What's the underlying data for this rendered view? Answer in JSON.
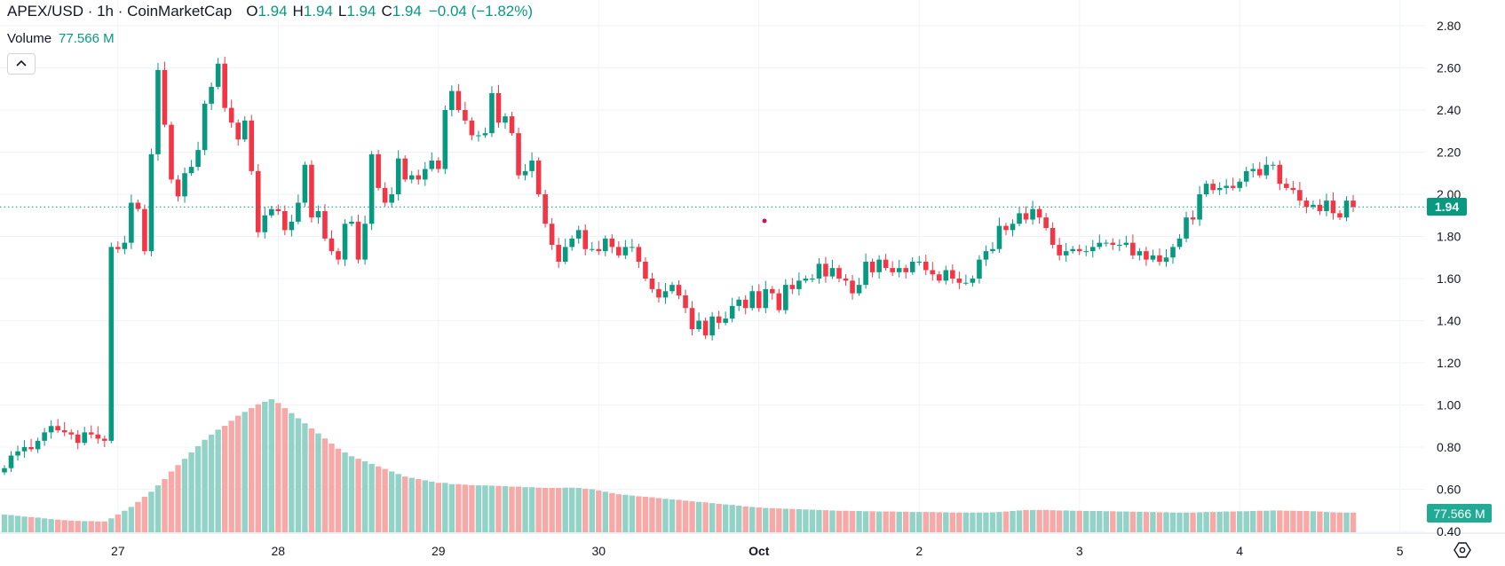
{
  "header": {
    "title": "APEX/USD · 1h · CoinMarketCap",
    "o_label": "O",
    "o_value": "1.94",
    "h_label": "H",
    "h_value": "1.94",
    "l_label": "L",
    "l_value": "1.94",
    "c_label": "C",
    "c_value": "1.94",
    "change": "−0.04 (−1.82%)"
  },
  "volume_legend": {
    "label": "Volume",
    "value": "77.566 M"
  },
  "collapse_icon": "chevron-up-icon",
  "settings_icon": "gear-icon",
  "current_price_badge": "1.94",
  "current_volume_badge": "77.566 M",
  "colors": {
    "up": "#089981",
    "down": "#f23645",
    "up_volume": "#92d2c7",
    "down_volume": "#f7a9a7",
    "grid": "#f0f3fa"
  },
  "chart_data": {
    "type": "candlestick",
    "symbol": "APEX/USD",
    "interval": "1h",
    "first_open": 0.68,
    "closes": [
      0.7,
      0.76,
      0.78,
      0.8,
      0.79,
      0.83,
      0.87,
      0.9,
      0.88,
      0.87,
      0.86,
      0.82,
      0.87,
      0.86,
      0.84,
      0.83,
      1.75,
      1.74,
      1.77,
      1.96,
      1.93,
      1.73,
      2.19,
      2.59,
      2.33,
      2.07,
      1.99,
      2.1,
      2.13,
      2.21,
      2.43,
      2.51,
      2.62,
      2.41,
      2.34,
      2.26,
      2.35,
      2.11,
      1.82,
      1.9,
      1.93,
      1.92,
      1.83,
      1.87,
      1.96,
      2.14,
      1.89,
      1.92,
      1.79,
      1.73,
      1.69,
      1.86,
      1.87,
      1.69,
      1.86,
      2.19,
      2.03,
      1.96,
      2.0,
      2.17,
      2.07,
      2.09,
      2.07,
      2.12,
      2.16,
      2.12,
      2.4,
      2.49,
      2.4,
      2.35,
      2.28,
      2.28,
      2.29,
      2.48,
      2.34,
      2.37,
      2.29,
      2.09,
      2.11,
      2.16,
      2.0,
      1.86,
      1.76,
      1.68,
      1.75,
      1.79,
      1.83,
      1.74,
      1.74,
      1.73,
      1.79,
      1.75,
      1.71,
      1.75,
      1.75,
      1.68,
      1.6,
      1.55,
      1.51,
      1.54,
      1.57,
      1.52,
      1.46,
      1.36,
      1.4,
      1.33,
      1.42,
      1.39,
      1.41,
      1.47,
      1.5,
      1.46,
      1.54,
      1.46,
      1.55,
      1.53,
      1.45,
      1.57,
      1.55,
      1.59,
      1.6,
      1.6,
      1.67,
      1.61,
      1.65,
      1.6,
      1.59,
      1.53,
      1.57,
      1.68,
      1.63,
      1.69,
      1.65,
      1.63,
      1.65,
      1.63,
      1.68,
      1.68,
      1.64,
      1.62,
      1.59,
      1.64,
      1.6,
      1.58,
      1.58,
      1.6,
      1.69,
      1.73,
      1.74,
      1.85,
      1.83,
      1.86,
      1.91,
      1.88,
      1.93,
      1.89,
      1.84,
      1.76,
      1.71,
      1.73,
      1.74,
      1.73,
      1.73,
      1.75,
      1.77,
      1.77,
      1.76,
      1.76,
      1.77,
      1.71,
      1.73,
      1.69,
      1.71,
      1.68,
      1.7,
      1.75,
      1.79,
      1.89,
      1.88,
      2.0,
      2.05,
      2.02,
      2.03,
      2.04,
      2.03,
      2.06,
      2.11,
      2.12,
      2.09,
      2.14,
      2.14,
      2.05,
      2.03,
      2.02,
      1.97,
      1.94,
      1.95,
      1.92,
      1.97,
      1.91,
      1.89,
      1.97,
      1.94
    ],
    "volumes_m": [
      70,
      68,
      65,
      62,
      60,
      58,
      55,
      52,
      50,
      48,
      46,
      45,
      44,
      44,
      43,
      43,
      55,
      70,
      85,
      100,
      120,
      140,
      160,
      185,
      210,
      240,
      265,
      290,
      315,
      340,
      365,
      385,
      405,
      420,
      440,
      460,
      475,
      490,
      505,
      515,
      525,
      510,
      490,
      470,
      450,
      430,
      410,
      390,
      370,
      350,
      330,
      315,
      300,
      290,
      280,
      270,
      260,
      250,
      240,
      230,
      220,
      215,
      210,
      205,
      200,
      195,
      195,
      190,
      190,
      188,
      186,
      185,
      185,
      184,
      183,
      182,
      180,
      180,
      178,
      178,
      176,
      175,
      175,
      175,
      176,
      176,
      175,
      172,
      170,
      165,
      160,
      155,
      150,
      148,
      145,
      142,
      140,
      138,
      135,
      132,
      130,
      128,
      125,
      122,
      120,
      118,
      115,
      112,
      110,
      108,
      105,
      102,
      100,
      98,
      96,
      95,
      94,
      93,
      92,
      91,
      90,
      89,
      88,
      87,
      86,
      85,
      85,
      84,
      84,
      83,
      83,
      82,
      82,
      82,
      81,
      81,
      80,
      80,
      80,
      80,
      79,
      79,
      78,
      78,
      78,
      78,
      78,
      78,
      79,
      80,
      82,
      84,
      86,
      88,
      88,
      88,
      88,
      87,
      86,
      86,
      85,
      85,
      84,
      84,
      84,
      83,
      83,
      82,
      82,
      81,
      81,
      80,
      80,
      79,
      79,
      78,
      78,
      78,
      78,
      79,
      80,
      80,
      81,
      82,
      82,
      83,
      83,
      84,
      85,
      85,
      86,
      86,
      85,
      85,
      84,
      84,
      83,
      82,
      80,
      79,
      78,
      78,
      77.566
    ],
    "price_ticks": [
      "2.80",
      "2.60",
      "2.40",
      "2.20",
      "2.00",
      "1.80",
      "1.60",
      "1.40",
      "1.20",
      "1.00",
      "0.80",
      "0.60",
      "0.40"
    ],
    "ylim": [
      0.4,
      2.8
    ],
    "x_tick_labels": [
      "27",
      "28",
      "29",
      "30",
      "Oct",
      "2",
      "3",
      "4",
      "5"
    ],
    "current_price": 1.94,
    "grid": true
  }
}
